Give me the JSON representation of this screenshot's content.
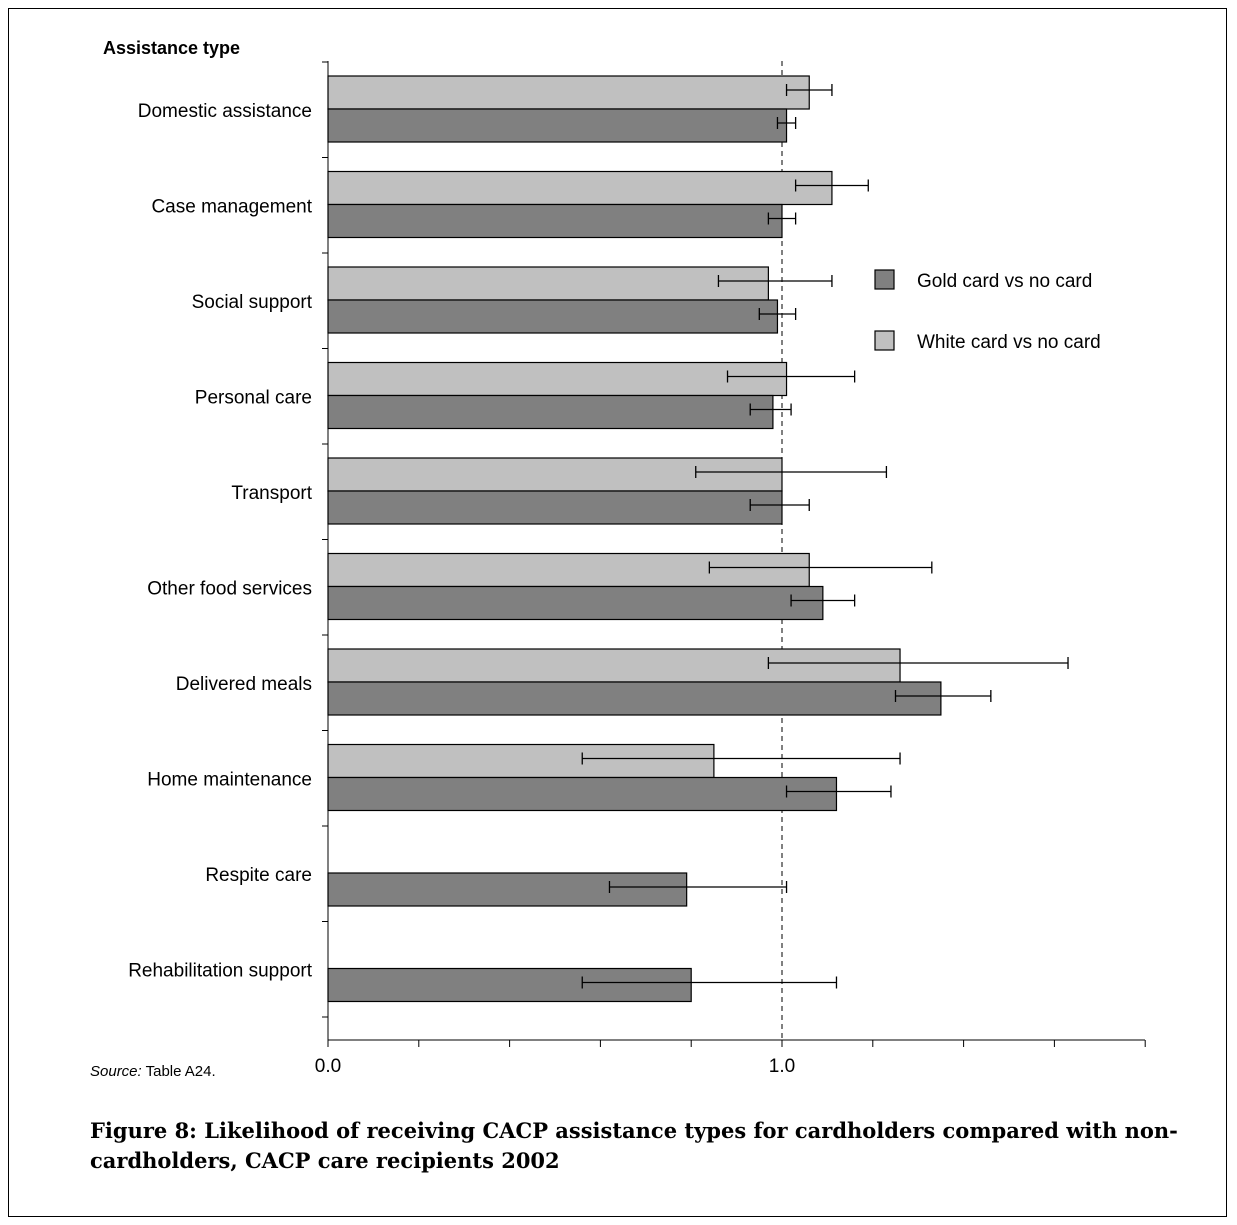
{
  "figure": {
    "axis_title": "Assistance type",
    "source_prefix": "Source:",
    "source_text": " Table A24.",
    "caption": "Figure 8: Likelihood of receiving CACP assistance types for cardholders compared with non-cardholders, CACP care recipients 2002"
  },
  "chart_data": {
    "type": "bar",
    "orientation": "horizontal",
    "title": "",
    "ylabel": "Assistance type",
    "xlabel": "",
    "xlim": [
      0,
      1.8
    ],
    "x_tick_labels": [
      {
        "value": 0.0,
        "label": "0.0"
      },
      {
        "value": 1.0,
        "label": "1.0"
      }
    ],
    "minor_ticks": [
      0.2,
      0.4,
      0.6,
      0.8,
      1.2,
      1.4,
      1.6,
      1.8
    ],
    "reference_line": 1.0,
    "grid": false,
    "legend_position": "right",
    "categories": [
      "Domestic assistance",
      "Case management",
      "Social support",
      "Personal care",
      "Transport",
      "Other food services",
      "Delivered meals",
      "Home maintenance",
      "Respite care",
      "Rehabilitation support"
    ],
    "series": [
      {
        "name": "Gold card vs no card",
        "color": "#808080",
        "values": [
          1.01,
          1.0,
          0.99,
          0.98,
          1.0,
          1.09,
          1.35,
          1.12,
          0.79,
          0.8
        ],
        "ci_low": [
          0.99,
          0.97,
          0.95,
          0.93,
          0.93,
          1.02,
          1.25,
          1.01,
          0.62,
          0.56
        ],
        "ci_high": [
          1.03,
          1.03,
          1.03,
          1.02,
          1.06,
          1.16,
          1.46,
          1.24,
          1.01,
          1.12
        ]
      },
      {
        "name": "White card vs no card",
        "color": "#c0c0c0",
        "values": [
          1.06,
          1.11,
          0.97,
          1.01,
          1.0,
          1.06,
          1.26,
          0.85,
          null,
          null
        ],
        "ci_low": [
          1.01,
          1.03,
          0.86,
          0.88,
          0.81,
          0.84,
          0.97,
          0.56,
          null,
          null
        ],
        "ci_high": [
          1.11,
          1.19,
          1.11,
          1.16,
          1.23,
          1.33,
          1.63,
          1.26,
          null,
          null
        ]
      }
    ]
  }
}
